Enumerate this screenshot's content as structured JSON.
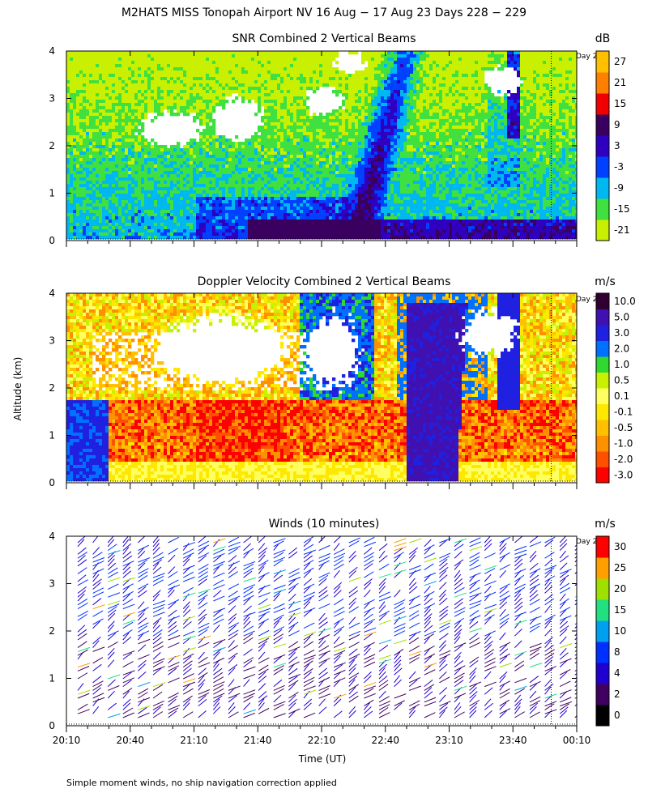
{
  "figure": {
    "title": "M2HATS MISS Tonopah Airport NV  16 Aug − 17 Aug 23 Days 228 − 229",
    "ylabel": "Altitude (km)",
    "xlabel": "Time (UT)",
    "footnote": "Simple moment winds, no ship navigation correction applied",
    "day_marker_label": "Day 2"
  },
  "chart_data": [
    {
      "type": "heatmap",
      "title": "SNR Combined 2 Vertical Beams",
      "xlabel": "",
      "ylabel": "Altitude (km)",
      "y_ticks": [
        "0",
        "1",
        "2",
        "3",
        "4"
      ],
      "ylim": [
        0,
        4
      ],
      "x_ticks": [
        "20:10",
        "20:40",
        "21:10",
        "21:40",
        "22:10",
        "22:40",
        "23:10",
        "23:40",
        "00:10"
      ],
      "x_tick_labels_shown": false,
      "day_marker_time": "23:58",
      "colorbar": {
        "unit": "dB",
        "levels": [
          "-21",
          "-15",
          "-9",
          "-3",
          "3",
          "9",
          "15",
          "21",
          "27"
        ],
        "colors": [
          "#c8f000",
          "#40e040",
          "#00b8f0",
          "#0040ff",
          "#3000c0",
          "#3a0060",
          "#f00000",
          "#ff8000",
          "#ffc000"
        ]
      }
    },
    {
      "type": "heatmap",
      "title": "Doppler Velocity Combined 2 Vertical Beams",
      "xlabel": "",
      "ylabel": "Altitude (km)",
      "y_ticks": [
        "0",
        "1",
        "2",
        "3",
        "4"
      ],
      "ylim": [
        0,
        4
      ],
      "x_ticks": [
        "20:10",
        "20:40",
        "21:10",
        "21:40",
        "22:10",
        "22:40",
        "23:10",
        "23:40",
        "00:10"
      ],
      "x_tick_labels_shown": false,
      "day_marker_time": "23:58",
      "colorbar": {
        "unit": "m/s",
        "levels": [
          "-3.0",
          "-2.0",
          "-1.0",
          "-0.5",
          "-0.1",
          "0.1",
          "0.5",
          "1.0",
          "2.0",
          "3.0",
          "5.0",
          "10.0"
        ],
        "colors": [
          "#ff0000",
          "#ff5000",
          "#ff9000",
          "#ffc000",
          "#ffe800",
          "#ffff60",
          "#c8f000",
          "#30d830",
          "#0070ff",
          "#2020e0",
          "#4010b0",
          "#300030"
        ]
      }
    },
    {
      "type": "scatter",
      "title": "Winds (10 minutes)",
      "xlabel": "Time (UT)",
      "ylabel": "Altitude (km)",
      "y_ticks": [
        "0",
        "1",
        "2",
        "3",
        "4"
      ],
      "ylim": [
        0,
        4
      ],
      "x_ticks": [
        "20:10",
        "20:40",
        "21:10",
        "21:40",
        "22:10",
        "22:40",
        "23:10",
        "23:40",
        "00:10"
      ],
      "x_tick_labels_shown": true,
      "day_marker_time": "23:58",
      "colorbar": {
        "unit": "m/s",
        "levels": [
          "0",
          "2",
          "4",
          "8",
          "10",
          "15",
          "20",
          "25",
          "30"
        ],
        "colors": [
          "#000000",
          "#400060",
          "#2000d0",
          "#0030ff",
          "#00a0f0",
          "#20e080",
          "#a0e000",
          "#ffa000",
          "#ff0000"
        ]
      }
    }
  ]
}
